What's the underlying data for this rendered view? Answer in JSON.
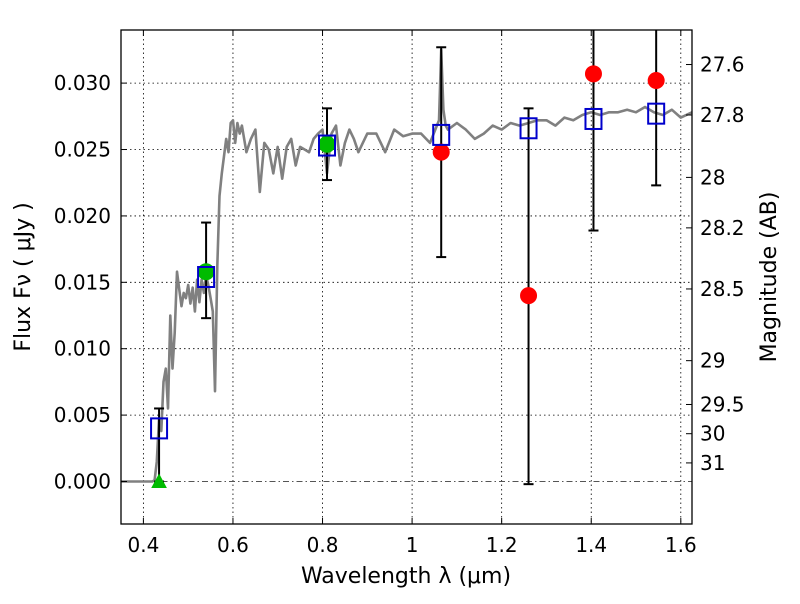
{
  "chart_data": {
    "type": "scatter",
    "title": "",
    "xlabel": "Wavelength  λ (μm)",
    "ylabel": "Flux  Fν  ( μJy )",
    "y2label": "Magnitude (AB)",
    "xlim": [
      0.35,
      1.625
    ],
    "ylim": [
      -0.0032,
      0.034
    ],
    "grid": true,
    "x_ticks": [
      0.4,
      0.6,
      0.8,
      1.0,
      1.2,
      1.4,
      1.6
    ],
    "x_tick_labels": [
      "0.4",
      "0.6",
      "0.8",
      "1",
      "1.2",
      "1.4",
      "1.6"
    ],
    "y_ticks": [
      0.0,
      0.005,
      0.01,
      0.015,
      0.02,
      0.025,
      0.03
    ],
    "y_tick_labels": [
      "0.000",
      "0.005",
      "0.010",
      "0.015",
      "0.020",
      "0.025",
      "0.030"
    ],
    "magnitude_ticks": [
      {
        "flux": 0.0314,
        "label": "27.6"
      },
      {
        "flux": 0.0276,
        "label": "27.8"
      },
      {
        "flux": 0.0229,
        "label": "28"
      },
      {
        "flux": 0.0191,
        "label": "28.2"
      },
      {
        "flux": 0.0145,
        "label": "28.5"
      },
      {
        "flux": 0.0091,
        "label": "29"
      },
      {
        "flux": 0.0058,
        "label": "29.5"
      },
      {
        "flux": 0.0036,
        "label": "30"
      },
      {
        "flux": 0.0014,
        "label": "31"
      }
    ],
    "colors": {
      "model": "#808080",
      "observed": "#ff0000",
      "optical": "#00bb00",
      "model_band": "#0000cc",
      "errorbar": "#000000"
    },
    "series": [
      {
        "kind": "model_sed",
        "x": [
          0.35,
          0.42,
          0.425,
          0.43,
          0.435,
          0.44,
          0.445,
          0.45,
          0.455,
          0.46,
          0.465,
          0.47,
          0.475,
          0.48,
          0.485,
          0.49,
          0.495,
          0.5,
          0.505,
          0.51,
          0.515,
          0.52,
          0.525,
          0.53,
          0.535,
          0.54,
          0.545,
          0.55,
          0.555,
          0.56,
          0.565,
          0.57,
          0.575,
          0.58,
          0.585,
          0.59,
          0.595,
          0.6,
          0.605,
          0.61,
          0.615,
          0.62,
          0.63,
          0.64,
          0.65,
          0.66,
          0.67,
          0.68,
          0.69,
          0.7,
          0.71,
          0.72,
          0.73,
          0.74,
          0.75,
          0.76,
          0.77,
          0.78,
          0.79,
          0.8,
          0.81,
          0.82,
          0.83,
          0.84,
          0.85,
          0.86,
          0.87,
          0.88,
          0.89,
          0.9,
          0.92,
          0.94,
          0.96,
          0.98,
          1.0,
          1.02,
          1.04,
          1.06,
          1.065,
          1.07,
          1.075,
          1.08,
          1.1,
          1.12,
          1.14,
          1.16,
          1.18,
          1.2,
          1.22,
          1.24,
          1.26,
          1.28,
          1.3,
          1.32,
          1.34,
          1.36,
          1.38,
          1.4,
          1.42,
          1.44,
          1.46,
          1.48,
          1.5,
          1.52,
          1.54,
          1.56,
          1.58,
          1.6,
          1.625
        ],
        "y": [
          0.0,
          0.0,
          0.0001,
          0.0015,
          0.0048,
          0.0038,
          0.0075,
          0.0085,
          0.0055,
          0.0125,
          0.0085,
          0.0112,
          0.0158,
          0.0145,
          0.0132,
          0.0142,
          0.0138,
          0.0148,
          0.0134,
          0.0146,
          0.0128,
          0.0152,
          0.0135,
          0.0152,
          0.0142,
          0.0155,
          0.0148,
          0.0138,
          0.0128,
          0.0068,
          0.0162,
          0.0215,
          0.0232,
          0.0245,
          0.0258,
          0.0248,
          0.027,
          0.0272,
          0.0255,
          0.027,
          0.0262,
          0.0268,
          0.0248,
          0.0258,
          0.0265,
          0.0218,
          0.0255,
          0.025,
          0.0232,
          0.0252,
          0.0228,
          0.0252,
          0.0258,
          0.0238,
          0.0252,
          0.025,
          0.0248,
          0.0258,
          0.0262,
          0.0265,
          0.0232,
          0.0262,
          0.0268,
          0.0238,
          0.0255,
          0.0265,
          0.0258,
          0.0248,
          0.0255,
          0.0262,
          0.0262,
          0.0248,
          0.0265,
          0.026,
          0.0262,
          0.0262,
          0.0255,
          0.0272,
          0.0325,
          0.028,
          0.0268,
          0.0265,
          0.027,
          0.0265,
          0.0258,
          0.0262,
          0.0268,
          0.0265,
          0.027,
          0.0268,
          0.027,
          0.0272,
          0.0272,
          0.0268,
          0.0274,
          0.0272,
          0.0276,
          0.0278,
          0.0276,
          0.0278,
          0.0278,
          0.028,
          0.0278,
          0.0282,
          0.0278,
          0.0276,
          0.028,
          0.0274,
          0.0278
        ]
      },
      {
        "kind": "model_band_flux",
        "marker": "open-square",
        "x": [
          0.435,
          0.54,
          0.81,
          1.065,
          1.26,
          1.405,
          1.545
        ],
        "y": [
          0.004,
          0.0154,
          0.0253,
          0.0261,
          0.0266,
          0.0273,
          0.0277
        ]
      },
      {
        "kind": "observed_optical",
        "marker": "filled-circle",
        "x": [
          0.54,
          0.81
        ],
        "y": [
          0.0158,
          0.0254
        ]
      },
      {
        "kind": "observed_nir",
        "marker": "filled-circle",
        "x": [
          1.065,
          1.26,
          1.405,
          1.545
        ],
        "y": [
          0.0248,
          0.014,
          0.0307,
          0.0302
        ]
      },
      {
        "kind": "upper_limit",
        "marker": "filled-triangle",
        "x": [
          0.435
        ],
        "y": [
          0.0
        ]
      },
      {
        "kind": "errorbars",
        "x": [
          0.435,
          0.54,
          0.81,
          1.065,
          1.26,
          1.405,
          1.545
        ],
        "low": [
          0.0,
          0.0123,
          0.0227,
          0.0169,
          -0.0002,
          0.0189,
          0.0223
        ],
        "high": [
          0.0055,
          0.0195,
          0.0281,
          0.0327,
          0.0281,
          0.0345,
          0.0345
        ]
      }
    ]
  }
}
